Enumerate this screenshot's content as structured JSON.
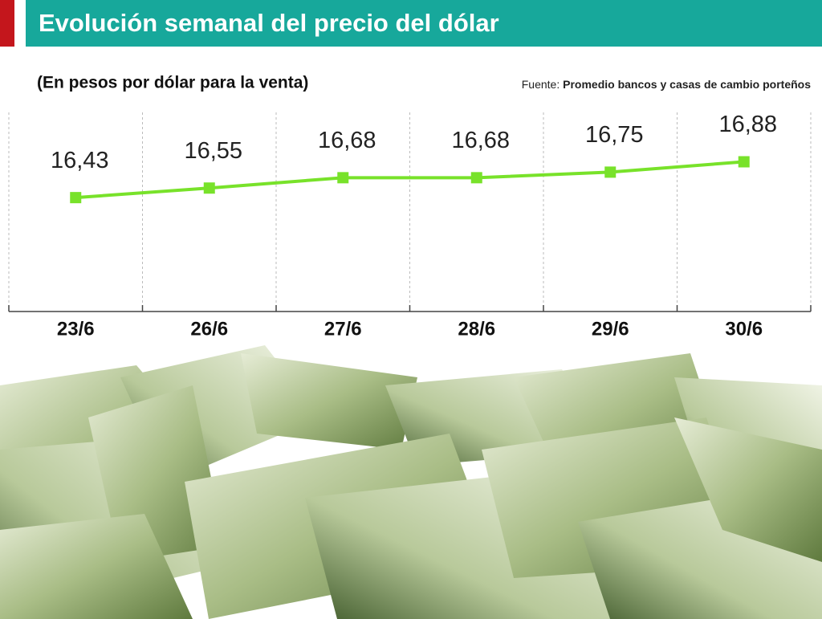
{
  "chart_data": {
    "type": "line",
    "title": "Evolución semanal del precio del dólar",
    "subtitle": "(En pesos por dólar para la venta)",
    "source_label": "Fuente:",
    "source": "Promedio bancos y casas de cambio porteños",
    "categories": [
      "23/6",
      "26/6",
      "27/6",
      "28/6",
      "29/6",
      "30/6"
    ],
    "values": [
      16.43,
      16.55,
      16.68,
      16.68,
      16.75,
      16.88
    ],
    "value_labels": [
      "16,43",
      "16,55",
      "16,68",
      "16,68",
      "16,75",
      "16,88"
    ],
    "color": "#78e22a",
    "ylim": [
      15,
      17.5
    ]
  }
}
